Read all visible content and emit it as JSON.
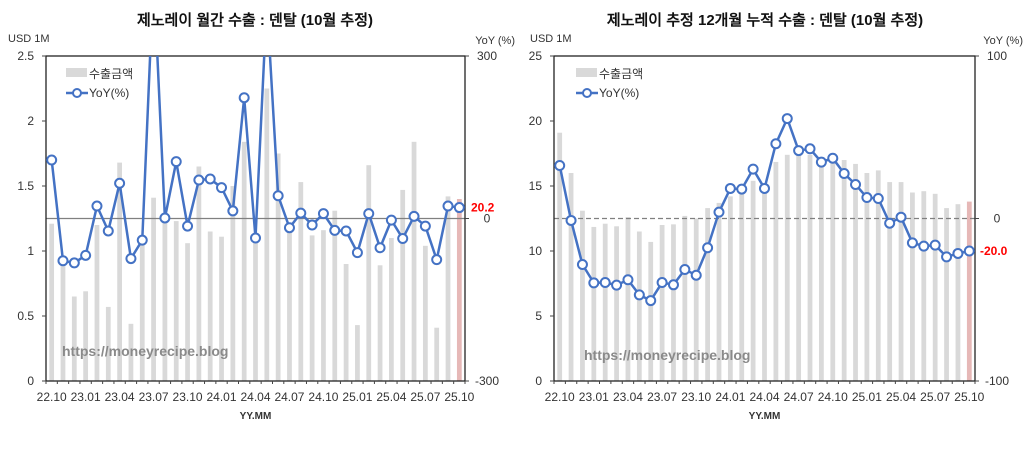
{
  "colors": {
    "bar": "#d9d9d9",
    "bar_highlight": "#e6b8b7",
    "line": "#4472c4",
    "marker_fill": "#ffffff",
    "highlight_label": "#ff0000",
    "zero_line": "#808080"
  },
  "watermark": "https://moneyrecipe.blog",
  "chart_data": [
    {
      "type": "bar+line",
      "title": "제노레이 월간 수출 : 덴탈 (10월 추정)",
      "ylabel_left": "USD 1M",
      "ylabel_right": "YoY (%)",
      "xlabel": "YY.MM",
      "ylim_left": [
        0,
        2.5
      ],
      "ylim_right": [
        -300,
        300
      ],
      "yticks_left": [
        "0",
        "0.5",
        "1",
        "1.5",
        "2",
        "2.5"
      ],
      "yticks_right": [
        "-300",
        "0",
        "300"
      ],
      "legend": {
        "bar": "수출금액",
        "line": "YoY(%)",
        "placement": "top-left"
      },
      "categories": [
        "22.10",
        "22.11",
        "22.12",
        "23.01",
        "23.02",
        "23.03",
        "23.04",
        "23.05",
        "23.06",
        "23.07",
        "23.08",
        "23.09",
        "23.10",
        "23.11",
        "23.12",
        "24.01",
        "24.02",
        "24.03",
        "24.04",
        "24.05",
        "24.06",
        "24.07",
        "24.08",
        "24.09",
        "24.10",
        "24.11",
        "24.12",
        "25.01",
        "25.02",
        "25.03",
        "25.04",
        "25.05",
        "25.06",
        "25.07",
        "25.08",
        "25.09",
        "25.10"
      ],
      "x_tick_labels": [
        "22.10",
        "23.01",
        "23.04",
        "23.07",
        "23.10",
        "24.01",
        "24.04",
        "24.07",
        "24.10",
        "25.01",
        "25.04",
        "25.07",
        "25.10"
      ],
      "series": [
        {
          "name": "수출금액",
          "kind": "bar",
          "values": [
            1.21,
            0.92,
            0.65,
            0.69,
            1.2,
            0.57,
            1.68,
            0.44,
            1.1,
            1.41,
            1.24,
            1.23,
            1.06,
            1.65,
            1.15,
            1.11,
            1.5,
            1.84,
            1.1,
            2.25,
            1.75,
            1.16,
            1.53,
            1.12,
            1.16,
            1.31,
            0.9,
            0.43,
            1.66,
            0.89,
            1.1,
            1.47,
            1.84,
            1.04,
            0.41,
            1.42,
            1.4
          ]
        },
        {
          "name": "YoY(%)",
          "kind": "line",
          "values": [
            108,
            -78,
            -82,
            -68,
            23,
            -23,
            65,
            -74,
            -40,
            450,
            1,
            105,
            -14,
            71,
            73,
            57,
            14,
            223,
            -36,
            400,
            42,
            -17,
            10,
            -12,
            9,
            -22,
            -23,
            -63,
            9,
            -54,
            -3,
            -37,
            4,
            -14,
            -76,
            23,
            20.2
          ]
        }
      ],
      "highlight_label": "20.2",
      "grid": false
    },
    {
      "type": "bar+line",
      "title": "제노레이 추정 12개월 누적 수출 : 덴탈 (10월 추정)",
      "ylabel_left": "USD 1M",
      "ylabel_right": "YoY (%)",
      "xlabel": "YY.MM",
      "ylim_left": [
        0,
        25
      ],
      "ylim_right": [
        -100,
        100
      ],
      "yticks_left": [
        "0",
        "5",
        "10",
        "15",
        "20",
        "25"
      ],
      "yticks_right": [
        "-100",
        "0",
        "100"
      ],
      "legend": {
        "bar": "수출금액",
        "line": "YoY(%)",
        "placement": "top-left"
      },
      "categories": [
        "22.10",
        "22.11",
        "22.12",
        "23.01",
        "23.02",
        "23.03",
        "23.04",
        "23.05",
        "23.06",
        "23.07",
        "23.08",
        "23.09",
        "23.10",
        "23.11",
        "23.12",
        "24.01",
        "24.02",
        "24.03",
        "24.04",
        "24.05",
        "24.06",
        "24.07",
        "24.08",
        "24.09",
        "24.10",
        "24.11",
        "24.12",
        "25.01",
        "25.02",
        "25.03",
        "25.04",
        "25.05",
        "25.06",
        "25.07",
        "25.08",
        "25.09",
        "25.10"
      ],
      "x_tick_labels": [
        "22.10",
        "23.01",
        "23.04",
        "23.07",
        "23.10",
        "24.01",
        "24.04",
        "24.07",
        "24.10",
        "25.01",
        "25.04",
        "25.07",
        "25.10"
      ],
      "series": [
        {
          "name": "수출금액",
          "kind": "bar",
          "values": [
            19.1,
            16.0,
            13.1,
            11.85,
            12.1,
            11.9,
            12.6,
            11.5,
            10.7,
            12.0,
            12.05,
            12.7,
            12.5,
            13.3,
            13.7,
            14.2,
            14.5,
            15.4,
            14.7,
            16.85,
            17.4,
            17.4,
            17.4,
            17.1,
            17.2,
            17.0,
            16.7,
            16.0,
            16.2,
            15.3,
            15.3,
            14.5,
            14.6,
            14.4,
            13.3,
            13.6,
            13.8
          ]
        },
        {
          "name": "YoY(%)",
          "kind": "line",
          "values": [
            32.6,
            -1.2,
            -28.3,
            -39.6,
            -39.4,
            -41,
            -37.7,
            -47,
            -50.5,
            -39.4,
            -40.8,
            -31.4,
            -34.9,
            -18,
            3.9,
            18.5,
            18.1,
            30.4,
            18.5,
            46,
            61.5,
            41.8,
            42.9,
            34.7,
            37.1,
            27.7,
            20.9,
            12.9,
            12.3,
            -2.9,
            0.8,
            -15,
            -17,
            -16.4,
            -23.6,
            -21.5,
            -20.0
          ]
        }
      ],
      "highlight_label": "-20.0",
      "grid": false
    }
  ]
}
